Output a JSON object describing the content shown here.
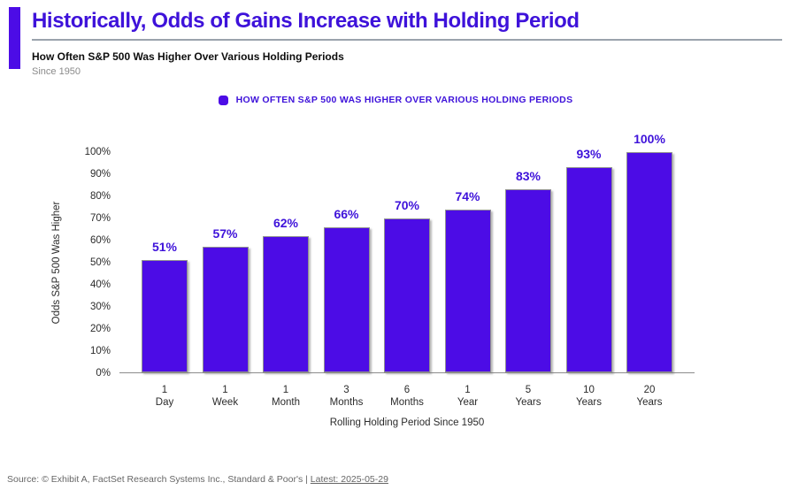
{
  "header": {
    "title": "Historically, Odds of Gains Increase with Holding Period",
    "subtitle": "How Often S&P 500 Was Higher Over Various Holding Periods",
    "note": "Since 1950"
  },
  "legend": {
    "marker_icon": "rounded-square-icon",
    "label": "HOW OFTEN S&P 500 WAS HIGHER OVER VARIOUS HOLDING PERIODS"
  },
  "chart_data": {
    "type": "bar",
    "title": "How Often S&P 500 Was Higher Over Various Holding Periods",
    "categories": [
      "1 Day",
      "1 Week",
      "1 Month",
      "3 Months",
      "6 Months",
      "1 Year",
      "5 Years",
      "10 Years",
      "20 Years"
    ],
    "values": [
      51,
      57,
      62,
      66,
      70,
      74,
      83,
      93,
      100
    ],
    "value_labels": [
      "51%",
      "57%",
      "62%",
      "66%",
      "70%",
      "74%",
      "83%",
      "93%",
      "100%"
    ],
    "xlabel": "Rolling Holding Period Since 1950",
    "ylabel": "Odds S&P 500 Was Higher",
    "ylim": [
      0,
      100
    ],
    "ytick_labels": [
      "0%",
      "10%",
      "20%",
      "30%",
      "40%",
      "50%",
      "60%",
      "70%",
      "80%",
      "90%",
      "100%"
    ],
    "grid": false,
    "legend_position": "top-center",
    "legend_entries": [
      "HOW OFTEN S&P 500 WAS HIGHER OVER VARIOUS HOLDING PERIODS"
    ]
  },
  "footer": {
    "source_text": "Source: © Exhibit A, FactSet Research Systems Inc., Standard & Poor's | ",
    "latest_text": "Latest: 2025-05-29"
  },
  "colors": {
    "accent": "#3e12da",
    "bar": "#4c0ce6",
    "divider": "#9aa3ac",
    "axis": "#8c8c8c"
  }
}
